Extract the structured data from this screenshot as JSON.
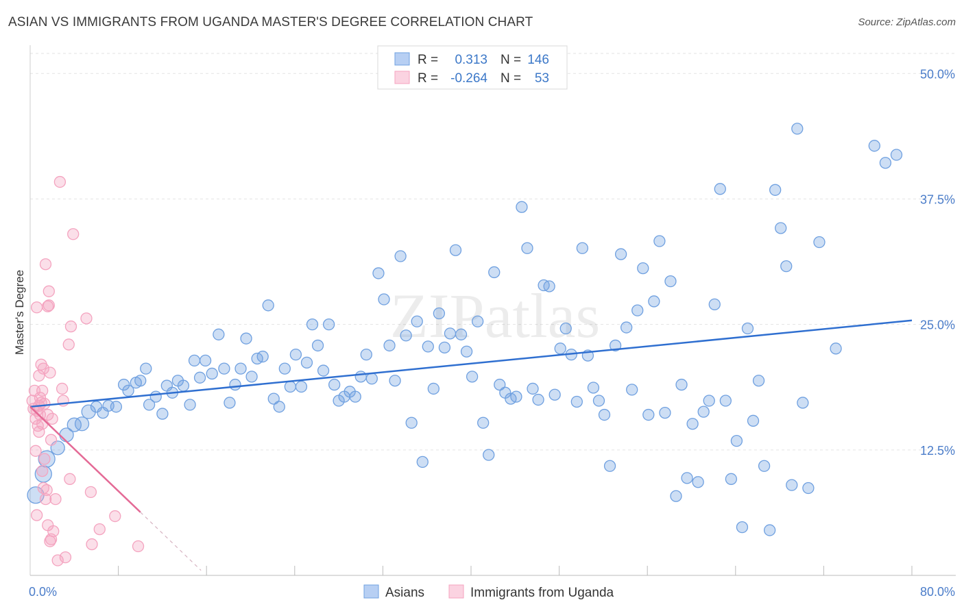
{
  "title": "ASIAN VS IMMIGRANTS FROM UGANDA MASTER'S DEGREE CORRELATION CHART",
  "source": "Source: ZipAtlas.com",
  "watermark": "ZIPatlas",
  "colors": {
    "asian": "#6fa0e0",
    "asian_line": "#2f6fd0",
    "uganda": "#f4a3bf",
    "uganda_line": "#e46a96",
    "axis_text": "#4a7cc9",
    "grid": "#dddddd"
  },
  "legend": {
    "rows": [
      {
        "r_label": "R =",
        "r_value": "0.313",
        "n_label": "N =",
        "n_value": "146"
      },
      {
        "r_label": "R =",
        "r_value": "-0.264",
        "n_label": "N =",
        "n_value": "53"
      }
    ]
  },
  "chart_data": {
    "type": "scatter",
    "title": "ASIAN VS IMMIGRANTS FROM UGANDA MASTER'S DEGREE CORRELATION CHART",
    "xlabel": "",
    "ylabel": "Master's Degree",
    "xlim": [
      0,
      80
    ],
    "ylim": [
      0,
      52
    ],
    "x_tick_labels": [
      "0.0%",
      "80.0%"
    ],
    "y_ticks": [
      12.5,
      25,
      37.5,
      50
    ],
    "y_tick_labels": [
      "12.5%",
      "25.0%",
      "37.5%",
      "50.0%"
    ],
    "legend_position": "bottom",
    "series": [
      {
        "name": "Asians",
        "color": "#6fa0e0",
        "trend": {
          "x": [
            0,
            80
          ],
          "y": [
            16.8,
            25.4
          ]
        },
        "points": [
          [
            0.5,
            8.0
          ],
          [
            1.2,
            10.1
          ],
          [
            1.5,
            11.6
          ],
          [
            2.5,
            12.7
          ],
          [
            3.3,
            14.0
          ],
          [
            4.0,
            15.0
          ],
          [
            4.7,
            15.1
          ],
          [
            5.3,
            16.3
          ],
          [
            6.0,
            16.8
          ],
          [
            6.6,
            16.2
          ],
          [
            7.1,
            16.9
          ],
          [
            7.8,
            16.8
          ],
          [
            8.5,
            19.0
          ],
          [
            8.9,
            18.4
          ],
          [
            9.6,
            19.2
          ],
          [
            10.0,
            19.4
          ],
          [
            10.5,
            20.6
          ],
          [
            10.8,
            17.0
          ],
          [
            11.4,
            17.8
          ],
          [
            12.0,
            16.1
          ],
          [
            12.4,
            18.9
          ],
          [
            12.9,
            18.2
          ],
          [
            13.4,
            19.4
          ],
          [
            13.9,
            18.9
          ],
          [
            14.5,
            17.0
          ],
          [
            14.9,
            21.4
          ],
          [
            15.4,
            19.7
          ],
          [
            15.9,
            21.4
          ],
          [
            16.5,
            20.1
          ],
          [
            17.1,
            24.0
          ],
          [
            17.6,
            20.6
          ],
          [
            18.1,
            17.2
          ],
          [
            18.6,
            19.0
          ],
          [
            19.1,
            20.6
          ],
          [
            19.6,
            23.6
          ],
          [
            20.1,
            19.8
          ],
          [
            20.6,
            21.6
          ],
          [
            21.1,
            21.8
          ],
          [
            21.6,
            26.9
          ],
          [
            22.1,
            17.6
          ],
          [
            22.6,
            16.8
          ],
          [
            23.1,
            20.6
          ],
          [
            23.6,
            18.8
          ],
          [
            24.1,
            22.0
          ],
          [
            24.6,
            18.8
          ],
          [
            25.1,
            21.2
          ],
          [
            25.6,
            25.0
          ],
          [
            26.1,
            22.9
          ],
          [
            26.6,
            20.4
          ],
          [
            27.1,
            25.0
          ],
          [
            27.6,
            19.0
          ],
          [
            28.0,
            17.4
          ],
          [
            28.5,
            17.8
          ],
          [
            29.0,
            18.3
          ],
          [
            29.5,
            17.8
          ],
          [
            30.0,
            19.8
          ],
          [
            30.5,
            22.0
          ],
          [
            31.0,
            19.6
          ],
          [
            31.6,
            30.1
          ],
          [
            32.1,
            27.5
          ],
          [
            32.6,
            22.9
          ],
          [
            33.1,
            19.4
          ],
          [
            33.6,
            31.8
          ],
          [
            34.1,
            23.9
          ],
          [
            34.6,
            15.2
          ],
          [
            35.1,
            25.3
          ],
          [
            35.6,
            11.3
          ],
          [
            36.1,
            22.8
          ],
          [
            36.6,
            18.6
          ],
          [
            37.1,
            26.1
          ],
          [
            37.6,
            22.7
          ],
          [
            38.1,
            24.1
          ],
          [
            38.6,
            32.4
          ],
          [
            39.1,
            24.0
          ],
          [
            39.6,
            22.3
          ],
          [
            40.1,
            19.8
          ],
          [
            40.6,
            25.3
          ],
          [
            41.1,
            15.2
          ],
          [
            41.6,
            12.0
          ],
          [
            42.1,
            30.2
          ],
          [
            42.6,
            19.0
          ],
          [
            43.1,
            18.2
          ],
          [
            43.6,
            17.6
          ],
          [
            44.1,
            17.8
          ],
          [
            44.6,
            36.7
          ],
          [
            45.1,
            32.6
          ],
          [
            45.6,
            18.6
          ],
          [
            46.1,
            17.5
          ],
          [
            46.6,
            28.9
          ],
          [
            47.1,
            28.8
          ],
          [
            47.6,
            18.0
          ],
          [
            48.1,
            22.6
          ],
          [
            48.6,
            24.6
          ],
          [
            49.1,
            22.0
          ],
          [
            49.6,
            17.3
          ],
          [
            50.1,
            32.6
          ],
          [
            50.6,
            21.9
          ],
          [
            51.1,
            18.7
          ],
          [
            51.6,
            17.4
          ],
          [
            52.1,
            16.0
          ],
          [
            52.6,
            10.9
          ],
          [
            53.1,
            22.9
          ],
          [
            53.6,
            32.0
          ],
          [
            54.1,
            24.7
          ],
          [
            54.6,
            18.5
          ],
          [
            55.1,
            26.4
          ],
          [
            55.6,
            30.6
          ],
          [
            56.1,
            16.0
          ],
          [
            56.6,
            27.3
          ],
          [
            57.1,
            33.3
          ],
          [
            57.6,
            16.2
          ],
          [
            58.1,
            29.3
          ],
          [
            58.6,
            7.9
          ],
          [
            59.1,
            19.0
          ],
          [
            59.6,
            9.7
          ],
          [
            60.1,
            15.1
          ],
          [
            60.6,
            9.3
          ],
          [
            61.1,
            16.3
          ],
          [
            61.6,
            17.4
          ],
          [
            62.1,
            27.0
          ],
          [
            62.6,
            38.5
          ],
          [
            63.1,
            17.4
          ],
          [
            63.6,
            9.6
          ],
          [
            64.1,
            13.4
          ],
          [
            64.6,
            4.8
          ],
          [
            65.1,
            24.6
          ],
          [
            65.6,
            15.4
          ],
          [
            66.1,
            19.4
          ],
          [
            66.6,
            10.9
          ],
          [
            67.1,
            4.5
          ],
          [
            67.6,
            38.4
          ],
          [
            68.1,
            34.6
          ],
          [
            68.6,
            30.8
          ],
          [
            69.1,
            9.0
          ],
          [
            69.6,
            44.5
          ],
          [
            70.1,
            17.2
          ],
          [
            70.6,
            8.7
          ],
          [
            71.6,
            33.2
          ],
          [
            73.1,
            22.6
          ],
          [
            76.6,
            42.8
          ],
          [
            77.6,
            41.1
          ],
          [
            78.6,
            41.9
          ]
        ]
      },
      {
        "name": "Immigrants from Uganda",
        "color": "#f4a3bf",
        "trend": {
          "x": [
            0,
            10
          ],
          "y": [
            16.8,
            6.3
          ],
          "dashed_extension": {
            "x": [
              10,
              15.5
            ],
            "y": [
              6.3,
              0.5
            ]
          }
        },
        "points": [
          [
            0.2,
            17.4
          ],
          [
            0.3,
            16.6
          ],
          [
            0.4,
            18.4
          ],
          [
            0.5,
            15.6
          ],
          [
            0.6,
            16.4
          ],
          [
            0.7,
            14.9
          ],
          [
            0.8,
            16.9
          ],
          [
            0.9,
            17.7
          ],
          [
            0.5,
            12.4
          ],
          [
            0.6,
            26.7
          ],
          [
            0.8,
            19.9
          ],
          [
            0.9,
            16.0
          ],
          [
            1.0,
            17.2
          ],
          [
            1.1,
            18.4
          ],
          [
            1.0,
            21.0
          ],
          [
            1.2,
            20.6
          ],
          [
            1.1,
            15.1
          ],
          [
            1.3,
            11.6
          ],
          [
            1.2,
            8.7
          ],
          [
            1.4,
            31.0
          ],
          [
            1.4,
            7.6
          ],
          [
            1.5,
            8.5
          ],
          [
            1.6,
            16.0
          ],
          [
            1.6,
            26.8
          ],
          [
            1.6,
            5.0
          ],
          [
            1.7,
            26.9
          ],
          [
            1.7,
            28.3
          ],
          [
            1.8,
            20.2
          ],
          [
            1.8,
            3.4
          ],
          [
            1.9,
            13.5
          ],
          [
            1.9,
            3.6
          ],
          [
            2.0,
            15.6
          ],
          [
            2.1,
            4.4
          ],
          [
            2.3,
            7.6
          ],
          [
            2.5,
            1.5
          ],
          [
            2.7,
            39.2
          ],
          [
            2.9,
            18.6
          ],
          [
            3.0,
            17.4
          ],
          [
            3.2,
            1.8
          ],
          [
            3.5,
            23.0
          ],
          [
            3.6,
            9.6
          ],
          [
            3.7,
            24.8
          ],
          [
            3.9,
            34.0
          ],
          [
            5.1,
            25.6
          ],
          [
            5.6,
            3.1
          ],
          [
            5.5,
            8.3
          ],
          [
            6.3,
            4.6
          ],
          [
            7.7,
            5.9
          ],
          [
            9.8,
            2.9
          ],
          [
            1.1,
            10.4
          ],
          [
            0.6,
            6.0
          ],
          [
            0.8,
            14.3
          ],
          [
            1.3,
            17.1
          ]
        ]
      }
    ]
  }
}
